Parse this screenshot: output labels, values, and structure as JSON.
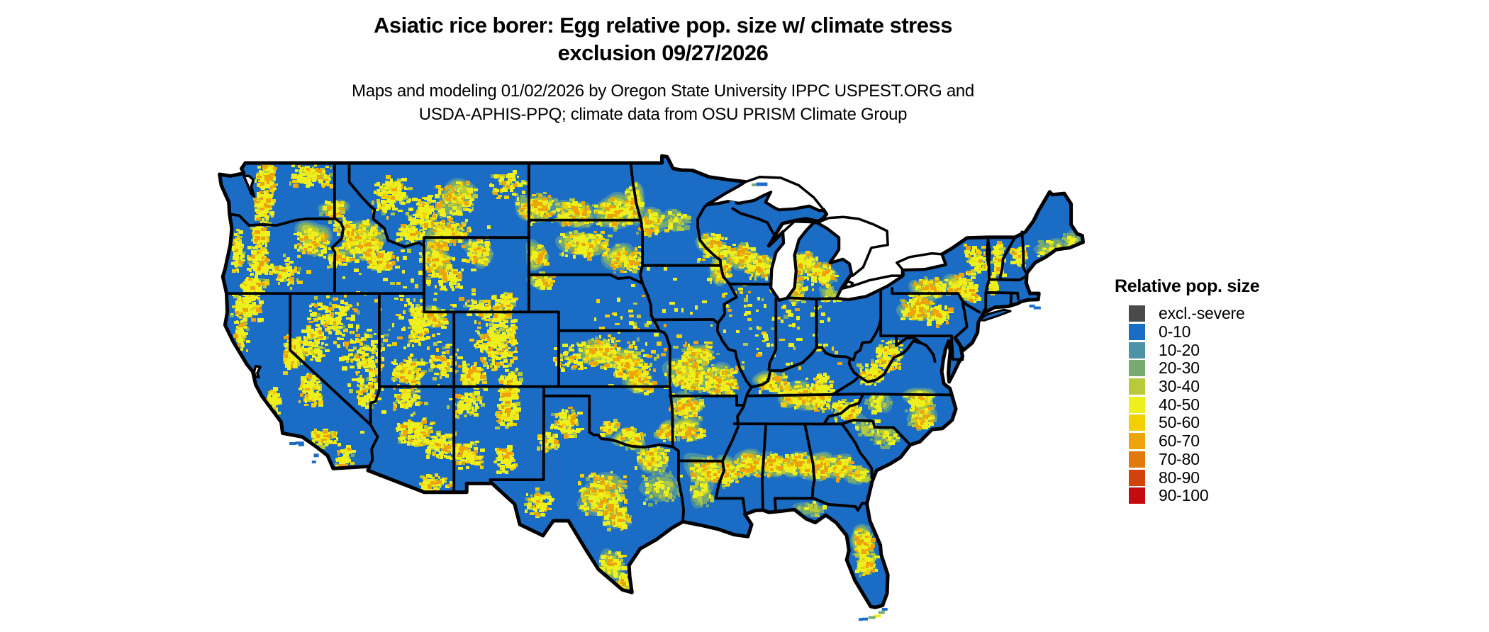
{
  "title": {
    "line1": "Asiatic rice borer: Egg relative pop. size w/ climate stress",
    "line2": "exclusion 09/27/2026"
  },
  "subtitle": {
    "line1": "Maps and modeling 01/02/2026 by Oregon State University IPPC USPEST.ORG and",
    "line2": "USDA-APHIS-PPQ; climate data from OSU PRISM Climate Group"
  },
  "legend": {
    "title": "Relative pop. size",
    "items": [
      {
        "label": "excl.-severe",
        "color": "#4a4a4a"
      },
      {
        "label": "0-10",
        "color": "#1b6cc4"
      },
      {
        "label": "10-20",
        "color": "#4e92a8"
      },
      {
        "label": "20-30",
        "color": "#77aa71"
      },
      {
        "label": "30-40",
        "color": "#b6ca3c"
      },
      {
        "label": "40-50",
        "color": "#edf01d"
      },
      {
        "label": "50-60",
        "color": "#f3cf03"
      },
      {
        "label": "60-70",
        "color": "#eca40a"
      },
      {
        "label": "70-80",
        "color": "#e1790e"
      },
      {
        "label": "80-90",
        "color": "#d2430c"
      },
      {
        "label": "90-100",
        "color": "#c40b10"
      }
    ]
  },
  "map": {
    "region": "Continental United States",
    "background_color": "#ffffff",
    "land_base_color": "#1b6cc4",
    "border_color": "#000000",
    "lake_color": "#ffffff"
  }
}
